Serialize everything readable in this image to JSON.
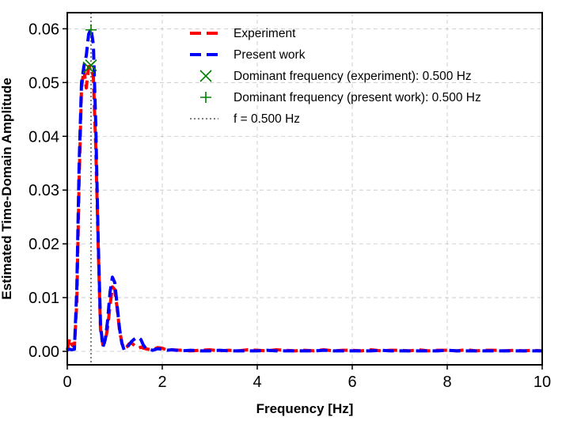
{
  "chart_data": {
    "type": "line",
    "title": "",
    "xlabel": "Frequency [Hz]",
    "ylabel": "Estimated Time-Domain Amplitude",
    "xlim": [
      0,
      10
    ],
    "ylim": [
      -0.0025,
      0.063
    ],
    "xticks": [
      0,
      2,
      4,
      6,
      8,
      10
    ],
    "xtick_labels": [
      "0",
      "2",
      "4",
      "6",
      "8",
      "10"
    ],
    "yticks": [
      0.0,
      0.01,
      0.02,
      0.03,
      0.04,
      0.05,
      0.06
    ],
    "ytick_labels": [
      "0.00",
      "0.01",
      "0.02",
      "0.03",
      "0.04",
      "0.05",
      "0.06"
    ],
    "grid": true,
    "legend_position": "top-center",
    "series": [
      {
        "name": "Experiment",
        "color": "#ff0000",
        "style": "dashed",
        "x": [
          0,
          0.05,
          0.1,
          0.15,
          0.2,
          0.25,
          0.3,
          0.35,
          0.4,
          0.45,
          0.5,
          0.55,
          0.6,
          0.65,
          0.7,
          0.75,
          0.8,
          0.85,
          0.9,
          0.95,
          1.0,
          1.05,
          1.1,
          1.15,
          1.2,
          1.25,
          1.3,
          1.35,
          1.4,
          1.45,
          1.5,
          1.55,
          1.6,
          1.65,
          1.7,
          1.8,
          1.9,
          2.0,
          2.1,
          2.2,
          2.4,
          2.6,
          2.8,
          3.0,
          3.2,
          3.4,
          3.6,
          3.8,
          4.0,
          4.2,
          4.4,
          4.6,
          4.8,
          5.0,
          5.2,
          5.4,
          5.6,
          5.8,
          6.0,
          6.2,
          6.4,
          6.6,
          6.8,
          7.0,
          7.2,
          7.4,
          7.6,
          7.8,
          8.0,
          8.2,
          8.4,
          8.6,
          8.8,
          9.0,
          9.2,
          9.4,
          9.6,
          9.8,
          10.0
        ],
        "values": [
          0.0002,
          0.0024,
          0.0012,
          0.0008,
          0.009,
          0.032,
          0.049,
          0.0525,
          0.049,
          0.053,
          0.053,
          0.051,
          0.038,
          0.02,
          0.004,
          0.0012,
          0.0018,
          0.0045,
          0.0085,
          0.012,
          0.0115,
          0.008,
          0.004,
          0.0015,
          0.0005,
          0.0008,
          0.0014,
          0.0016,
          0.0012,
          0.0008,
          0.0006,
          0.0008,
          0.0006,
          0.0005,
          0.0004,
          0.0003,
          0.0007,
          0.0006,
          0.0002,
          0.0003,
          0.0002,
          0.0001,
          0.0002,
          0.0003,
          0.0001,
          0.0002,
          0.0001,
          0.0003,
          0.0002,
          0.0001,
          0.0003,
          0.0002,
          0.0001,
          0.0002,
          0.0001,
          0.0003,
          0.0001,
          0.0002,
          0.0002,
          0.0001,
          0.0003,
          0.0001,
          0.0002,
          0.0002,
          0.0001,
          0.0003,
          0.0001,
          0.0002,
          0.0002,
          0.0001,
          0.0003,
          0.0001,
          0.0002,
          0.0002,
          0.0001,
          0.0002,
          0.0001,
          0.0002,
          0.0001
        ]
      },
      {
        "name": "Present work",
        "color": "#0000ff",
        "style": "dashed",
        "x": [
          0,
          0.05,
          0.1,
          0.15,
          0.2,
          0.25,
          0.3,
          0.35,
          0.4,
          0.45,
          0.5,
          0.55,
          0.6,
          0.65,
          0.7,
          0.75,
          0.8,
          0.85,
          0.9,
          0.95,
          1.0,
          1.05,
          1.1,
          1.15,
          1.2,
          1.25,
          1.3,
          1.35,
          1.4,
          1.45,
          1.5,
          1.55,
          1.6,
          1.65,
          1.7,
          1.8,
          1.9,
          2.0,
          2.1,
          2.2,
          2.4,
          2.6,
          2.8,
          3.0,
          3.2,
          3.4,
          3.6,
          3.8,
          4.0,
          4.2,
          4.4,
          4.6,
          4.8,
          5.0,
          5.2,
          5.4,
          5.6,
          5.8,
          6.0,
          6.2,
          6.4,
          6.6,
          6.8,
          7.0,
          7.2,
          7.4,
          7.6,
          7.8,
          8.0,
          8.2,
          8.4,
          8.6,
          8.8,
          9.0,
          9.2,
          9.4,
          9.6,
          9.8,
          10.0
        ],
        "values": [
          0.0003,
          0.0004,
          0.0003,
          0.0004,
          0.0115,
          0.035,
          0.05,
          0.053,
          0.055,
          0.059,
          0.06,
          0.057,
          0.042,
          0.021,
          0.005,
          0.0008,
          0.0022,
          0.0058,
          0.011,
          0.0138,
          0.0128,
          0.0085,
          0.0042,
          0.0015,
          0.0002,
          0.0006,
          0.0012,
          0.0018,
          0.0022,
          0.0025,
          0.0026,
          0.0022,
          0.0012,
          0.0006,
          0.0004,
          0.0002,
          0.0005,
          0.0004,
          0.0002,
          0.0003,
          0.0001,
          0.0002,
          0.0001,
          0.0001,
          0.0002,
          0.0001,
          0.0001,
          0.0001,
          0.0001,
          0.0002,
          0.0001,
          0.0001,
          0.0001,
          0.0001,
          0.0001,
          0.0002,
          0.0001,
          0.0001,
          0.0001,
          0.0001,
          0.0001,
          0.0002,
          0.0001,
          0.0001,
          0.0001,
          0.0001,
          0.0001,
          0.0001,
          0.0002,
          0.0001,
          0.0001,
          0.0001,
          0.0001,
          0.0001,
          0.0001,
          0.0001,
          0.0001,
          0.0001,
          0.0001
        ]
      }
    ],
    "markers": [
      {
        "name": "Dominant frequency (experiment): 0.500 Hz",
        "symbol": "x",
        "color": "#008000",
        "points": [
          [
            0.45,
            0.0528
          ],
          [
            0.5,
            0.0532
          ]
        ]
      },
      {
        "name": "Dominant frequency (present work): 0.500 Hz",
        "symbol": "+",
        "color": "#008000",
        "points": [
          [
            0.5,
            0.0598
          ]
        ]
      }
    ],
    "vline": {
      "name": "f = 0.500 Hz",
      "x": 0.5,
      "color": "#808080",
      "style": "dotted"
    },
    "legend": [
      {
        "label": "Experiment",
        "kind": "dashed",
        "color": "#ff0000"
      },
      {
        "label": "Present work",
        "kind": "dashed",
        "color": "#0000ff"
      },
      {
        "label": "Dominant frequency (experiment): 0.500 Hz",
        "kind": "x",
        "color": "#008000"
      },
      {
        "label": "Dominant frequency (present work): 0.500 Hz",
        "kind": "+",
        "color": "#008000"
      },
      {
        "label": "f = 0.500 Hz",
        "kind": "dotted",
        "color": "#808080"
      }
    ]
  }
}
